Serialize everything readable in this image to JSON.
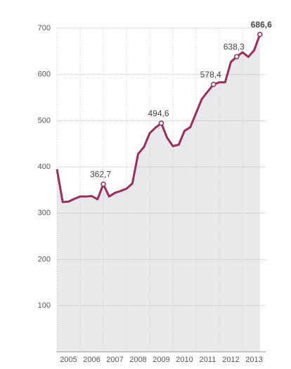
{
  "chart_data": {
    "type": "line",
    "x": [
      2005,
      2005.25,
      2005.5,
      2005.75,
      2006,
      2006.25,
      2006.5,
      2006.75,
      2007,
      2007.25,
      2007.5,
      2007.75,
      2008,
      2008.25,
      2008.5,
      2008.75,
      2009,
      2009.25,
      2009.5,
      2009.75,
      2010,
      2010.25,
      2010.5,
      2010.75,
      2011,
      2011.25,
      2011.5,
      2011.75,
      2012,
      2012.25,
      2012.5,
      2012.75,
      2013,
      2013.25,
      2013.5,
      2013.75
    ],
    "values": [
      395,
      324,
      325,
      331,
      336,
      336,
      337,
      330,
      362.7,
      336,
      344,
      348,
      353,
      364,
      428,
      443,
      473,
      485,
      494.6,
      463,
      445,
      448,
      478,
      486,
      517,
      547,
      563,
      578.4,
      583,
      583,
      627,
      638.3,
      648,
      638,
      652,
      686.6
    ],
    "value_labels": [
      null,
      null,
      null,
      null,
      null,
      null,
      null,
      null,
      "362,7",
      null,
      null,
      null,
      null,
      null,
      null,
      null,
      null,
      null,
      "494,6",
      null,
      null,
      null,
      null,
      null,
      null,
      null,
      null,
      "578,4",
      null,
      null,
      null,
      "638,3",
      null,
      null,
      null,
      "686,6"
    ],
    "color": "#9b2d5c",
    "area_color": "#e9e9eb",
    "xlim": [
      2005,
      2014
    ],
    "xticks": [
      2005,
      2006,
      2007,
      2008,
      2009,
      2010,
      2011,
      2012,
      2013
    ],
    "ylim": [
      0,
      700
    ],
    "yticks": [
      100,
      200,
      300,
      400,
      500,
      600,
      700
    ],
    "grid": true
  }
}
